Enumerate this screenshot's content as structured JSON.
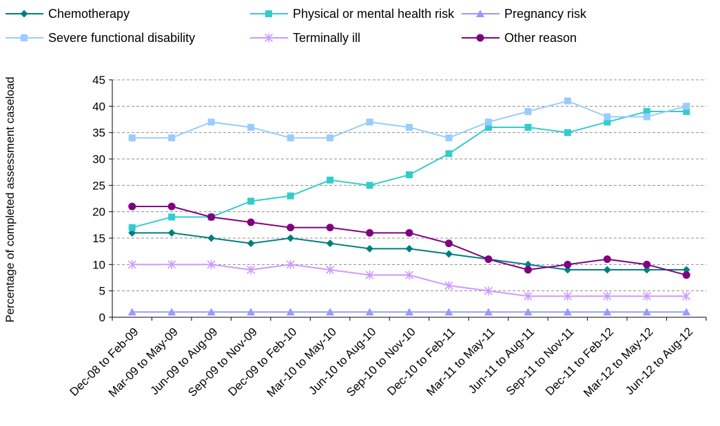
{
  "chart_data": {
    "type": "line",
    "title": "",
    "xlabel": "",
    "ylabel": "Percentage of completed assessment caseload",
    "ylim": [
      0,
      45
    ],
    "yticks": [
      0,
      5,
      10,
      15,
      20,
      25,
      30,
      35,
      40,
      45
    ],
    "grid": "horizontal dashed",
    "legend_position": "top",
    "categories": [
      "Dec-08 to Feb-09",
      "Mar-09 to May-09",
      "Jun-09 to Aug-09",
      "Sep-09 to Nov-09",
      "Dec-09 to Feb-10",
      "Mar-10 to May-10",
      "Jun-10 to Aug-10",
      "Sep-10 to Nov-10",
      "Dec-10 to Feb-11",
      "Mar-11 to May-11",
      "Jun-11 to Aug-11",
      "Sep-11 to Nov-11",
      "Dec-11 to Feb-12",
      "Mar-12 to May-12",
      "Jun-12 to Aug-12"
    ],
    "series": [
      {
        "name": "Chemotherapy",
        "color": "#007f7f",
        "marker": "diamond",
        "values": [
          16,
          16,
          15,
          14,
          15,
          14,
          13,
          13,
          12,
          11,
          10,
          9,
          9,
          9,
          9
        ]
      },
      {
        "name": "Physical or mental health risk",
        "color": "#33cccc",
        "marker": "square",
        "values": [
          17,
          19,
          19,
          22,
          23,
          26,
          25,
          27,
          31,
          36,
          36,
          35,
          37,
          39,
          39
        ]
      },
      {
        "name": "Pregnancy risk",
        "color": "#9999ff",
        "marker": "triangle",
        "values": [
          1,
          1,
          1,
          1,
          1,
          1,
          1,
          1,
          1,
          1,
          1,
          1,
          1,
          1,
          1
        ]
      },
      {
        "name": "Severe functional disability",
        "color": "#99ccff",
        "marker": "square",
        "values": [
          34,
          34,
          37,
          36,
          34,
          34,
          37,
          36,
          34,
          37,
          39,
          41,
          38,
          38,
          40
        ]
      },
      {
        "name": "Terminally ill",
        "color": "#cc99ff",
        "marker": "asterisk",
        "values": [
          10,
          10,
          10,
          9,
          10,
          9,
          8,
          8,
          6,
          5,
          4,
          4,
          4,
          4,
          4
        ]
      },
      {
        "name": "Other reason",
        "color": "#800080",
        "marker": "circle",
        "values": [
          21,
          21,
          19,
          18,
          17,
          17,
          16,
          16,
          14,
          11,
          9,
          10,
          11,
          10,
          8
        ]
      }
    ]
  }
}
